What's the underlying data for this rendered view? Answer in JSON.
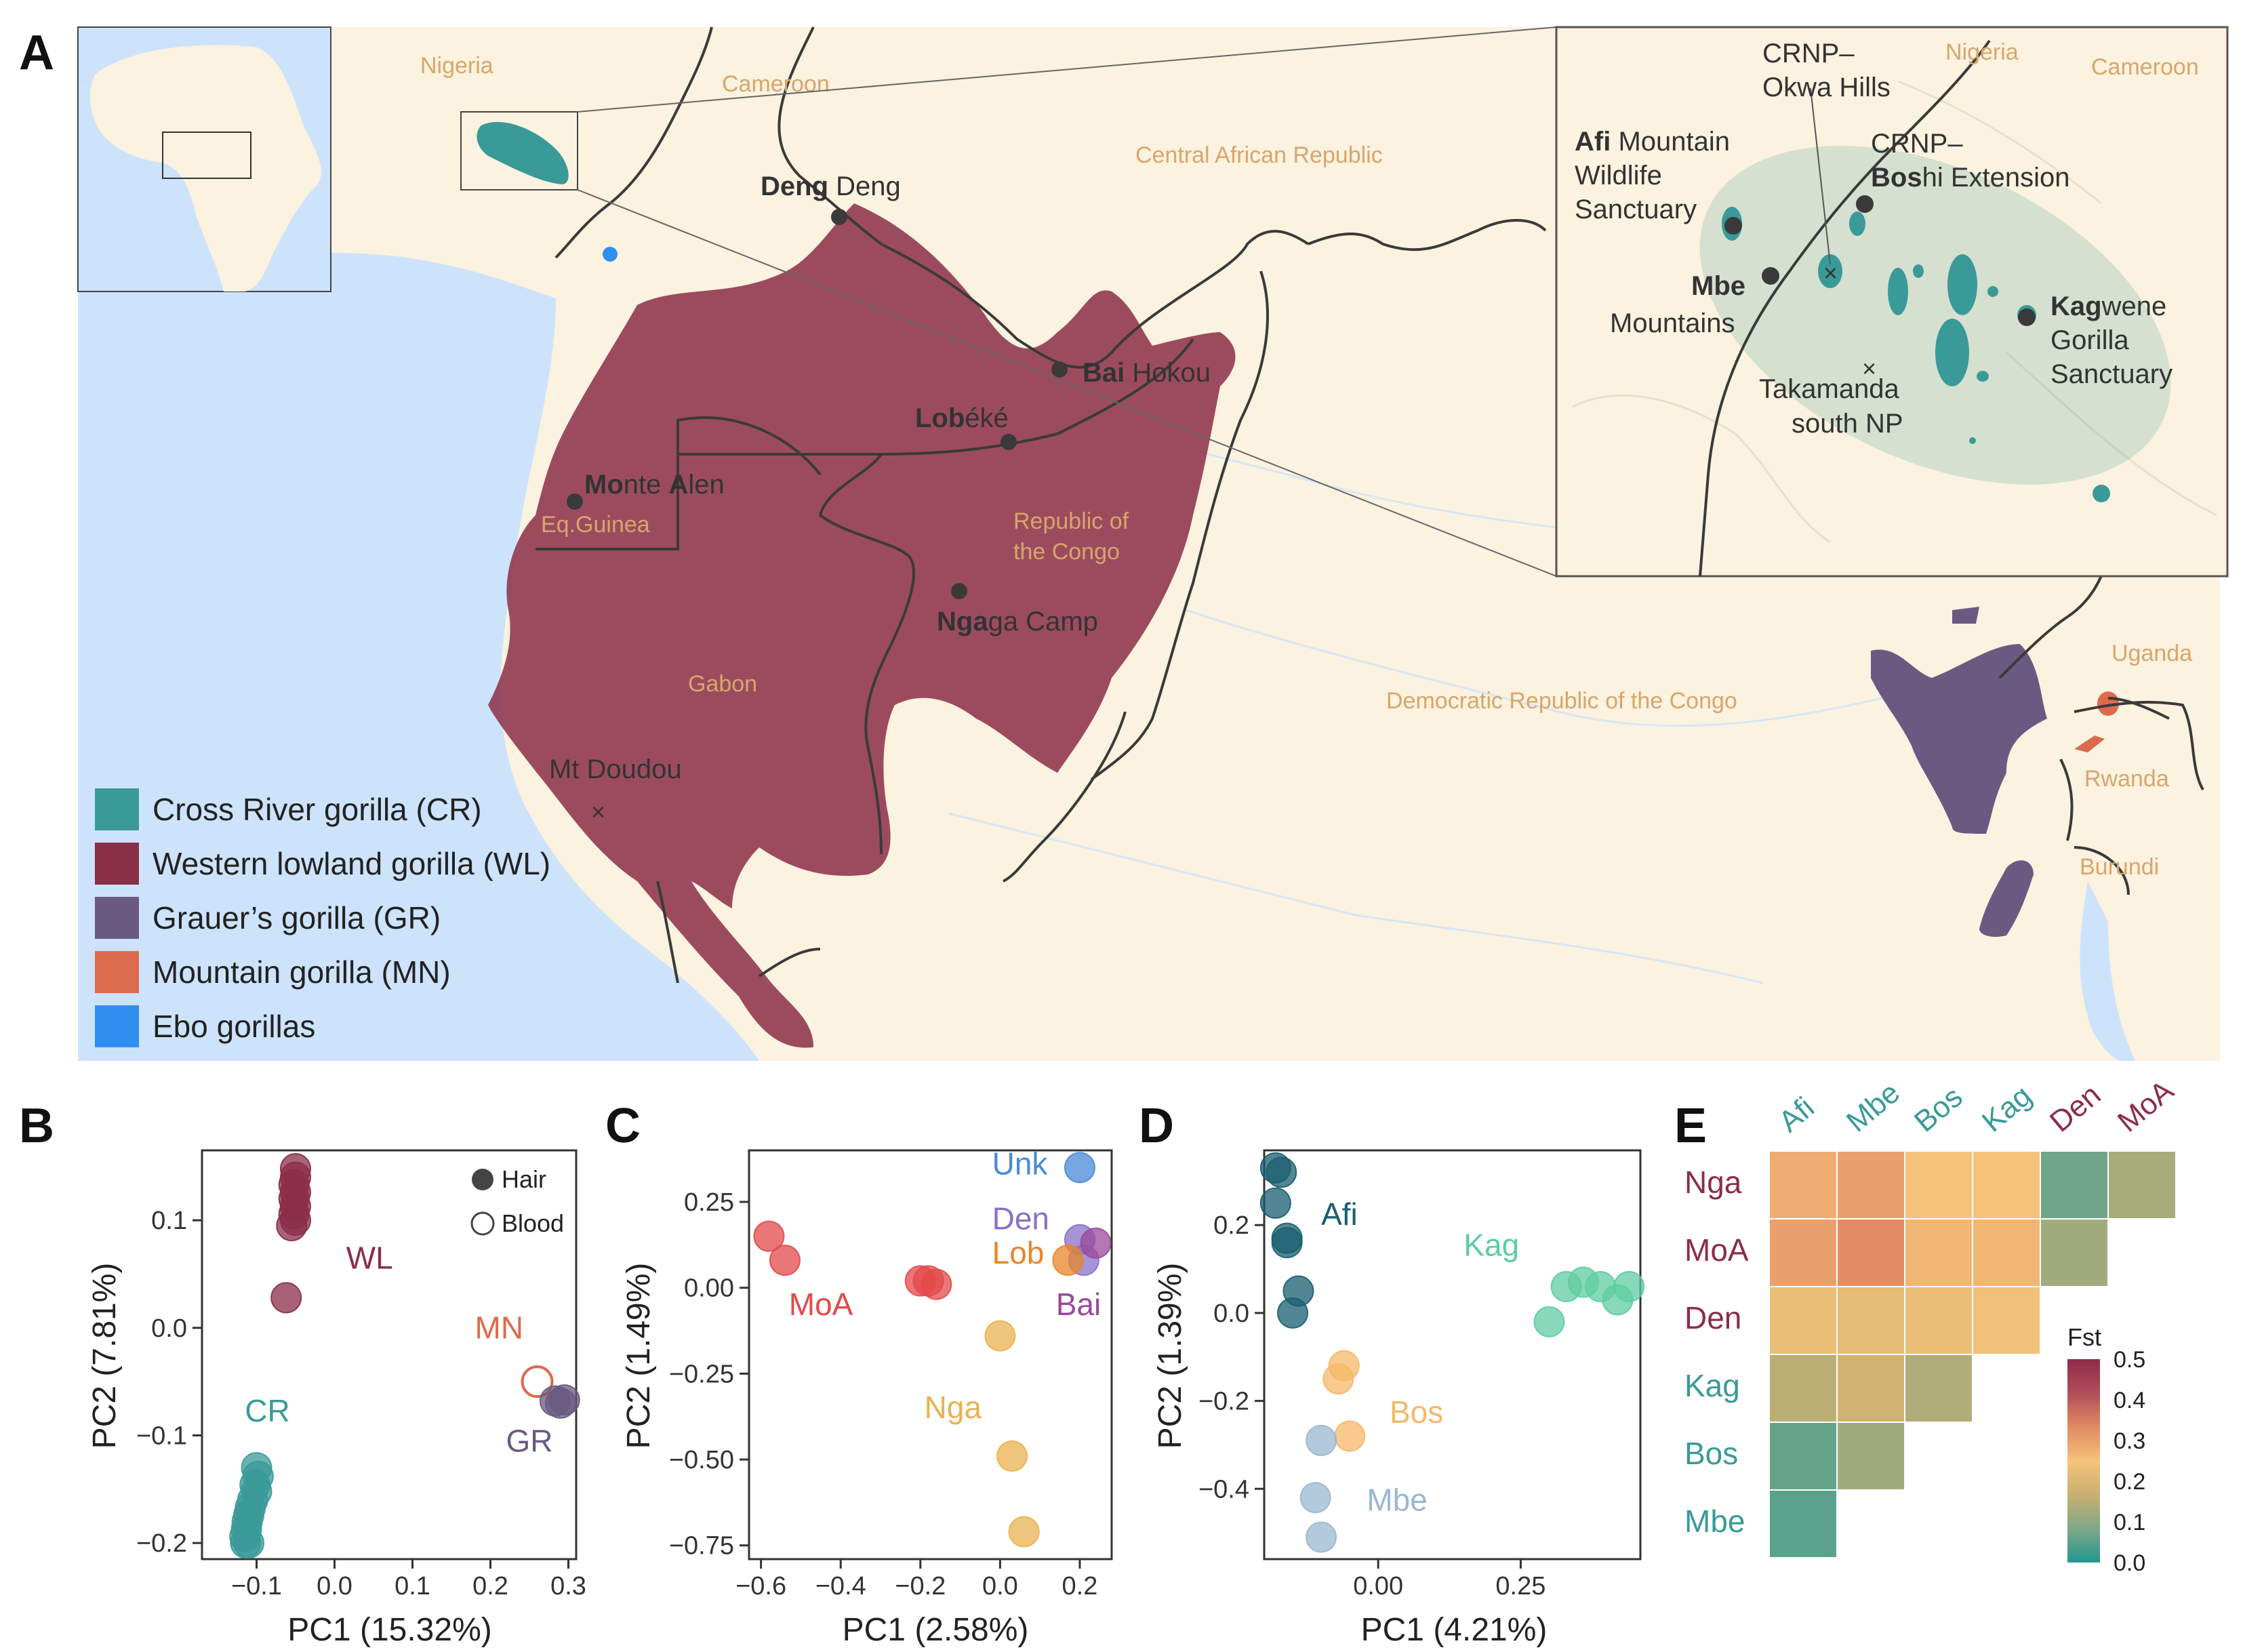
{
  "panel_letters": {
    "a": "A",
    "b": "B",
    "c": "C",
    "d": "D",
    "e": "E"
  },
  "colors": {
    "CR": "#3a9a98",
    "WL": "#8b2e48",
    "GR": "#6a5a82",
    "MN": "#dc6a4c",
    "Ebo": "#2f8ff0",
    "map_land": "#fcf2e0",
    "map_water": "#cde3fb",
    "country_label": "#d8a66a",
    "point": "#3a3a3a"
  },
  "map": {
    "countries": {
      "nigeria": "Nigeria",
      "cameroon": "Cameroon",
      "car": "Central African Republic",
      "congo": "Republic of\nthe Congo",
      "eqguinea": "Eq.Guinea",
      "gabon": "Gabon",
      "drc": "Democratic Republic of the Congo",
      "uganda": "Uganda",
      "rwanda": "Rwanda",
      "burundi": "Burundi"
    },
    "sites": {
      "deng_b": "Deng",
      "deng_r": " Deng",
      "bai_b": "Bai",
      "bai_r": " Hokou",
      "lob_b": "Lob",
      "lob_r": "éké",
      "monte_b": "Mo",
      "monte_r1": "nte ",
      "monte_b2": "A",
      "monte_r2": "len",
      "nga_b": "Nga",
      "nga_r": "ga Camp",
      "doudou": "Mt Doudou"
    },
    "legend": [
      {
        "key": "CR",
        "label": "Cross River gorilla (CR)"
      },
      {
        "key": "WL",
        "label": "Western lowland gorilla (WL)"
      },
      {
        "key": "GR",
        "label": "Grauer’s gorilla (GR)"
      },
      {
        "key": "MN",
        "label": "Mountain gorilla (MN)"
      },
      {
        "key": "Ebo",
        "label": "Ebo gorillas"
      }
    ],
    "inset": {
      "nigeria": "Nigeria",
      "cameroon": "Cameroon",
      "okwa_1": "CRNP–",
      "okwa_2": "Okwa Hills",
      "afi_b": "Afi",
      "afi_r1": " Mountain",
      "afi_r2": "Wildlife",
      "afi_r3": "Sanctuary",
      "boshi_1": "CRNP–",
      "boshi_b": "Bos",
      "boshi_r": "hi Extension",
      "mbe_b": "Mbe",
      "mbe_r": "Mountains",
      "kag_b": "Kag",
      "kag_r1": "wene",
      "kag_r2": "Gorilla",
      "kag_r3": "Sanctuary",
      "tak_1": "Takamanda",
      "tak_2": "south NP"
    }
  },
  "chart_data": [
    {
      "panel": "B",
      "type": "scatter",
      "xlabel": "PC1 (15.32%)",
      "ylabel": "PC2 (7.81%)",
      "xlim": [
        -0.17,
        0.31
      ],
      "ylim": [
        -0.215,
        0.165
      ],
      "xticks": [
        -0.1,
        0.0,
        0.1,
        0.2,
        0.3
      ],
      "xtick_labels": [
        "−0.1",
        "0.0",
        "0.1",
        "0.2",
        "0.3"
      ],
      "yticks": [
        0.1,
        0.0,
        -0.1,
        -0.2
      ],
      "ytick_labels": [
        "0.1",
        "0.0",
        "−0.1",
        "−0.2"
      ],
      "legend": [
        {
          "label": "Hair",
          "filled": true
        },
        {
          "label": "Blood",
          "filled": false
        }
      ],
      "groups": [
        {
          "key": "WL",
          "label": "WL",
          "label_at": [
            0.015,
            0.055
          ],
          "points": [
            [
              -0.05,
              0.148
            ],
            [
              -0.05,
              0.14
            ],
            [
              -0.052,
              0.133
            ],
            [
              -0.05,
              0.126
            ],
            [
              -0.052,
              0.12
            ],
            [
              -0.05,
              0.113
            ],
            [
              -0.052,
              0.106
            ],
            [
              -0.05,
              0.1
            ],
            [
              -0.055,
              0.095
            ],
            [
              -0.062,
              0.028
            ]
          ],
          "filled": true
        },
        {
          "key": "MN",
          "label": "MN",
          "label_at": [
            0.18,
            -0.01
          ],
          "points": [
            [
              0.26,
              -0.05
            ]
          ],
          "filled": false
        },
        {
          "key": "GR",
          "label": "GR",
          "label_at": [
            0.22,
            -0.115
          ],
          "points": [
            [
              0.283,
              -0.068
            ],
            [
              0.29,
              -0.07
            ],
            [
              0.295,
              -0.067
            ]
          ],
          "filled": true
        },
        {
          "key": "CR",
          "label": "CR",
          "label_at": [
            -0.115,
            -0.087
          ],
          "points": [
            [
              -0.1,
              -0.13
            ],
            [
              -0.098,
              -0.138
            ],
            [
              -0.102,
              -0.146
            ],
            [
              -0.1,
              -0.152
            ],
            [
              -0.105,
              -0.16
            ],
            [
              -0.108,
              -0.167
            ],
            [
              -0.11,
              -0.174
            ],
            [
              -0.112,
              -0.18
            ],
            [
              -0.113,
              -0.187
            ],
            [
              -0.115,
              -0.194
            ],
            [
              -0.114,
              -0.2
            ],
            [
              -0.11,
              -0.2
            ]
          ],
          "filled": true
        }
      ]
    },
    {
      "panel": "C",
      "type": "scatter",
      "xlabel": "PC1 (2.58%)",
      "ylabel": "PC2 (1.49%)",
      "xlim": [
        -0.63,
        0.28
      ],
      "ylim": [
        -0.79,
        0.4
      ],
      "xticks": [
        -0.6,
        -0.4,
        -0.2,
        0.0,
        0.2
      ],
      "xtick_labels": [
        "−0.6",
        "−0.4",
        "−0.2",
        "0.0",
        "0.2"
      ],
      "yticks": [
        0.25,
        0.0,
        -0.25,
        -0.5,
        -0.75
      ],
      "ytick_labels": [
        "0.25",
        "0.00",
        "−0.25",
        "−0.50",
        "−0.75"
      ],
      "groups": [
        {
          "key": "MoA",
          "color": "#e34a4a",
          "label": "MoA",
          "label_at": [
            -0.53,
            -0.08
          ],
          "points": [
            [
              -0.58,
              0.15
            ],
            [
              -0.54,
              0.08
            ],
            [
              -0.2,
              0.02
            ],
            [
              -0.18,
              0.02
            ],
            [
              -0.16,
              0.01
            ]
          ]
        },
        {
          "key": "Nga",
          "color": "#e9b24f",
          "label": "Nga",
          "label_at": [
            -0.19,
            -0.38
          ],
          "points": [
            [
              0.0,
              -0.14
            ],
            [
              0.03,
              -0.49
            ],
            [
              0.06,
              -0.71
            ]
          ]
        },
        {
          "key": "Unk",
          "color": "#4a8ad8",
          "label": "Unk",
          "label_at": [
            -0.02,
            0.33
          ],
          "points": [
            [
              0.2,
              0.35
            ]
          ]
        },
        {
          "key": "Den",
          "color": "#8a70c8",
          "label": "Den",
          "label_at": [
            -0.02,
            0.17
          ],
          "points": [
            [
              0.2,
              0.14
            ],
            [
              0.21,
              0.08
            ]
          ]
        },
        {
          "key": "Lob",
          "color": "#e8862a",
          "label": "Lob",
          "label_at": [
            -0.02,
            0.07
          ],
          "points": [
            [
              0.17,
              0.08
            ]
          ]
        },
        {
          "key": "Bai",
          "color": "#9a4a9a",
          "label": "Bai",
          "label_at": [
            0.14,
            -0.08
          ],
          "points": [
            [
              0.24,
              0.13
            ]
          ]
        }
      ]
    },
    {
      "panel": "D",
      "type": "scatter",
      "xlabel": "PC1 (4.21%)",
      "ylabel": "PC2 (1.39%)",
      "xlim": [
        -0.2,
        0.46
      ],
      "ylim": [
        -0.56,
        0.37
      ],
      "xticks": [
        0.0,
        0.25
      ],
      "xtick_labels": [
        "0.00",
        "0.25"
      ],
      "yticks": [
        0.2,
        0.0,
        -0.2,
        -0.4
      ],
      "ytick_labels": [
        "0.2",
        "0.0",
        "−0.2",
        "−0.4"
      ],
      "groups": [
        {
          "key": "Afi",
          "color": "#1a5e70",
          "label": "Afi",
          "label_at": [
            -0.1,
            0.2
          ],
          "points": [
            [
              -0.18,
              0.33
            ],
            [
              -0.17,
              0.32
            ],
            [
              -0.18,
              0.25
            ],
            [
              -0.16,
              0.17
            ],
            [
              -0.16,
              0.16
            ],
            [
              -0.14,
              0.05
            ],
            [
              -0.15,
              0.0
            ]
          ]
        },
        {
          "key": "Kag",
          "color": "#5fcca2",
          "label": "Kag",
          "label_at": [
            0.15,
            0.13
          ],
          "points": [
            [
              0.3,
              -0.02
            ],
            [
              0.33,
              0.06
            ],
            [
              0.36,
              0.07
            ],
            [
              0.39,
              0.06
            ],
            [
              0.42,
              0.03
            ],
            [
              0.44,
              0.06
            ]
          ]
        },
        {
          "key": "Bos",
          "color": "#f5b86a",
          "label": "Bos",
          "label_at": [
            0.02,
            -0.25
          ],
          "points": [
            [
              -0.06,
              -0.12
            ],
            [
              -0.07,
              -0.15
            ],
            [
              -0.05,
              -0.28
            ]
          ]
        },
        {
          "key": "Mbe",
          "color": "#9ab8d2",
          "label": "Mbe",
          "label_at": [
            -0.02,
            -0.45
          ],
          "points": [
            [
              -0.1,
              -0.29
            ],
            [
              -0.11,
              -0.42
            ],
            [
              -0.1,
              -0.51
            ]
          ]
        }
      ]
    },
    {
      "panel": "E",
      "type": "heatmap",
      "column_labels": [
        {
          "label": "Afi",
          "group": "CR"
        },
        {
          "label": "Mbe",
          "group": "CR"
        },
        {
          "label": "Bos",
          "group": "CR"
        },
        {
          "label": "Kag",
          "group": "CR"
        },
        {
          "label": "Den",
          "group": "WL"
        },
        {
          "label": "MoA",
          "group": "WL"
        }
      ],
      "row_labels": [
        {
          "label": "Nga",
          "group": "WL"
        },
        {
          "label": "MoA",
          "group": "WL"
        },
        {
          "label": "Den",
          "group": "WL"
        },
        {
          "label": "Kag",
          "group": "CR"
        },
        {
          "label": "Bos",
          "group": "CR"
        },
        {
          "label": "Mbe",
          "group": "CR"
        }
      ],
      "values": [
        [
          0.28,
          0.3,
          0.25,
          0.25,
          0.07,
          0.13
        ],
        [
          0.3,
          0.33,
          0.27,
          0.27,
          0.12,
          null
        ],
        [
          0.23,
          0.22,
          0.23,
          0.24,
          null,
          null
        ],
        [
          0.15,
          0.18,
          0.14,
          null,
          null,
          null
        ],
        [
          0.06,
          0.12,
          null,
          null,
          null,
          null
        ],
        [
          0.05,
          null,
          null,
          null,
          null,
          null
        ]
      ],
      "colorbar": {
        "title": "Fst",
        "range": [
          0.0,
          0.5
        ],
        "ticks": [
          "0.5",
          "0.4",
          "0.3",
          "0.2",
          "0.1",
          "0.0"
        ],
        "stops": [
          "#229890",
          "#7fa888",
          "#c9b070",
          "#f6c27a",
          "#e08a62",
          "#b04e5a",
          "#8e2b4a"
        ]
      }
    }
  ]
}
